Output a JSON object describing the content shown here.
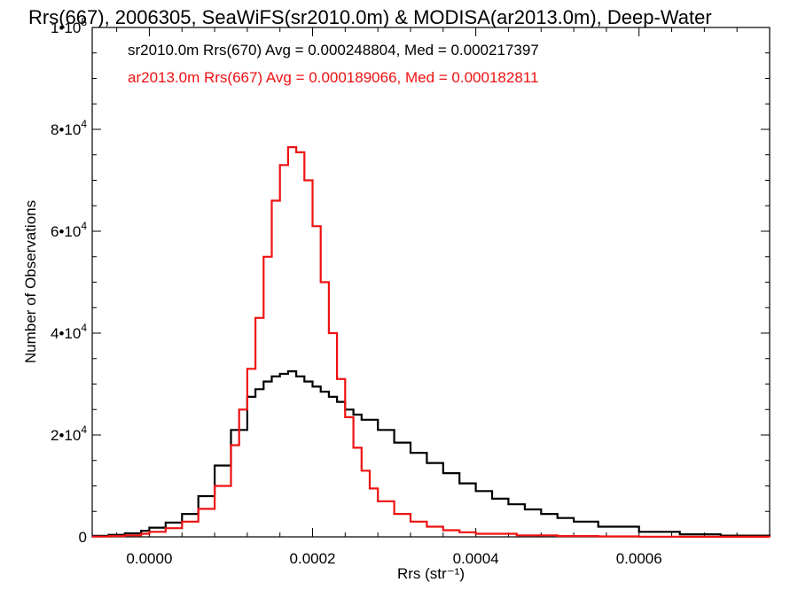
{
  "chart_data": {
    "type": "line",
    "title": "Rrs(667), 2006305, SeaWiFS(sr2010.0m) & MODISA(ar2013.0m), Deep-Water",
    "xlabel": "Rrs (str⁻¹)",
    "ylabel": "Number of Observations",
    "xlim": [
      -7e-05,
      0.00076
    ],
    "ylim": [
      0,
      100000
    ],
    "x_ticks": [
      {
        "value": 0.0,
        "label": "0.0000"
      },
      {
        "value": 0.0002,
        "label": "0.0002"
      },
      {
        "value": 0.0004,
        "label": "0.0004"
      },
      {
        "value": 0.0006,
        "label": "0.0006"
      }
    ],
    "y_ticks": [
      {
        "value": 0,
        "mantissa": "0",
        "exp": ""
      },
      {
        "value": 20000,
        "mantissa": "2•10",
        "exp": "4"
      },
      {
        "value": 40000,
        "mantissa": "4•10",
        "exp": "4"
      },
      {
        "value": 60000,
        "mantissa": "6•10",
        "exp": "4"
      },
      {
        "value": 80000,
        "mantissa": "8•10",
        "exp": "4"
      },
      {
        "value": 100000,
        "mantissa": "1•10",
        "exp": "5"
      }
    ],
    "grid": false,
    "step": true,
    "annotations": [
      {
        "text": "sr2010.0m Rrs(670) Avg = 0.000248804, Med = 0.000217397",
        "color": "#000000"
      },
      {
        "text": "ar2013.0m Rrs(667) Avg = 0.000189066, Med = 0.000182811",
        "color": "#ee1111"
      }
    ],
    "series": [
      {
        "color": "#000000",
        "x": [
          -7e-05,
          -5e-05,
          -3e-05,
          -1e-05,
          0.0,
          2e-05,
          4e-05,
          6e-05,
          8e-05,
          0.0001,
          0.00012,
          0.00013,
          0.00014,
          0.00015,
          0.00016,
          0.00017,
          0.00018,
          0.00019,
          0.0002,
          0.00021,
          0.00022,
          0.00023,
          0.00024,
          0.00025,
          0.00026,
          0.00028,
          0.0003,
          0.00032,
          0.00034,
          0.00036,
          0.00038,
          0.0004,
          0.00042,
          0.00044,
          0.00046,
          0.00048,
          0.0005,
          0.00052,
          0.00055,
          0.0006,
          0.00065,
          0.0007,
          0.00076
        ],
        "values": [
          200,
          400,
          700,
          1200,
          1800,
          2800,
          4500,
          8000,
          14000,
          21000,
          27500,
          29000,
          30500,
          31500,
          32000,
          32500,
          31500,
          30500,
          29500,
          28500,
          27500,
          26500,
          25000,
          24000,
          23000,
          21000,
          18500,
          16500,
          14500,
          12500,
          10500,
          9000,
          7500,
          6400,
          5400,
          4500,
          3700,
          3000,
          2000,
          1000,
          500,
          250,
          100
        ]
      },
      {
        "color": "#ee1111",
        "x": [
          -7e-05,
          -5e-05,
          -3e-05,
          -1e-05,
          0.0,
          2e-05,
          4e-05,
          6e-05,
          8e-05,
          0.0001,
          0.00011,
          0.00012,
          0.00013,
          0.00014,
          0.00015,
          0.00016,
          0.00017,
          0.00018,
          0.00019,
          0.0002,
          0.00021,
          0.00022,
          0.00023,
          0.00024,
          0.00025,
          0.00026,
          0.00027,
          0.00028,
          0.0003,
          0.00032,
          0.00034,
          0.00036,
          0.00038,
          0.0004,
          0.00045,
          0.0005,
          0.00055,
          0.0006,
          0.00065,
          0.0007,
          0.00076
        ],
        "values": [
          50,
          150,
          300,
          600,
          1000,
          1700,
          3000,
          5500,
          10000,
          18000,
          25000,
          33000,
          43000,
          55000,
          66000,
          73000,
          76500,
          75500,
          70000,
          61000,
          50000,
          40000,
          31000,
          23500,
          17500,
          13000,
          9500,
          7000,
          4500,
          3000,
          2000,
          1300,
          900,
          600,
          300,
          150,
          80,
          40,
          20,
          10,
          0
        ]
      }
    ]
  }
}
